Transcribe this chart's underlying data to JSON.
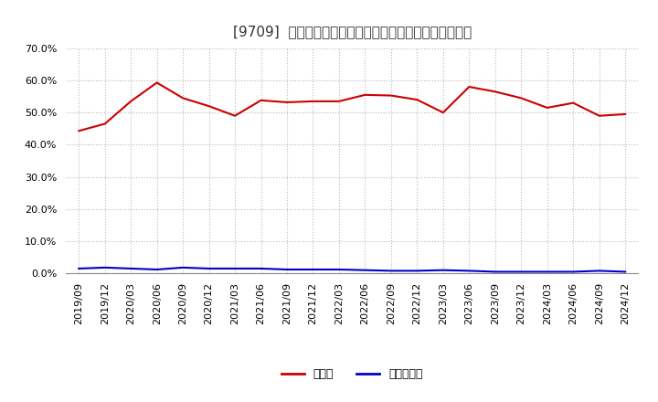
{
  "title": "[9709]  現預金、有利子負債の総資産に対する比率の推移",
  "x_labels": [
    "2019/09",
    "2019/12",
    "2020/03",
    "2020/06",
    "2020/09",
    "2020/12",
    "2021/03",
    "2021/06",
    "2021/09",
    "2021/12",
    "2022/03",
    "2022/06",
    "2022/09",
    "2022/12",
    "2023/03",
    "2023/06",
    "2023/09",
    "2023/12",
    "2024/03",
    "2024/06",
    "2024/09",
    "2024/12"
  ],
  "cash_values": [
    44.3,
    46.5,
    53.5,
    59.3,
    54.5,
    52.0,
    49.0,
    53.8,
    53.2,
    53.5,
    53.5,
    55.5,
    55.3,
    54.0,
    50.0,
    58.0,
    56.5,
    54.5,
    51.5,
    53.0,
    49.0,
    49.5
  ],
  "debt_values": [
    1.5,
    1.8,
    1.5,
    1.2,
    1.8,
    1.5,
    1.5,
    1.5,
    1.2,
    1.2,
    1.2,
    1.0,
    0.8,
    0.8,
    1.0,
    0.8,
    0.5,
    0.5,
    0.5,
    0.5,
    0.8,
    0.5
  ],
  "cash_color": "#cc0000",
  "debt_color": "#0000cc",
  "ylim": [
    0,
    70
  ],
  "yticks": [
    0,
    10,
    20,
    30,
    40,
    50,
    60,
    70
  ],
  "ytick_labels": [
    "0.0%",
    "10.0%",
    "20.0%",
    "30.0%",
    "40.0%",
    "50.0%",
    "60.0%",
    "70.0%"
  ],
  "legend_cash": "現預金",
  "legend_debt": "有利子負債",
  "bg_color": "#ffffff",
  "plot_bg_color": "#ffffff",
  "grid_color": "#bbbbbb",
  "line_width": 1.5,
  "title_fontsize": 11,
  "tick_fontsize": 8,
  "legend_fontsize": 9
}
